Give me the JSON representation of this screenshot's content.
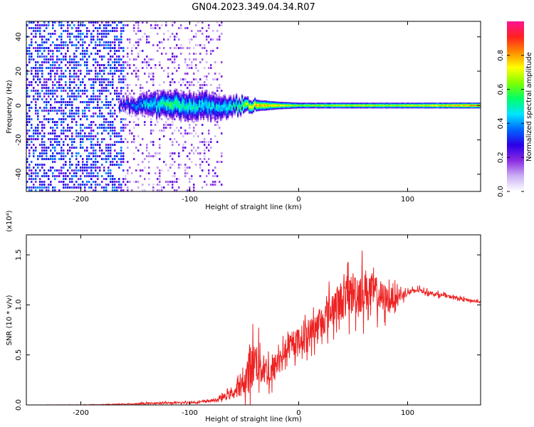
{
  "title": "GN04.2023.349.04.34.R07",
  "chart_data": [
    {
      "type": "heatmap",
      "xlabel": "Height of straight line (km)",
      "ylabel": "Frequency (Hz)",
      "xlim": [
        -250,
        167
      ],
      "ylim": [
        -50,
        49
      ],
      "xticks": [
        -200,
        -100,
        0,
        100
      ],
      "yticks": [
        -40,
        -20,
        0,
        20,
        40
      ],
      "colorbar": {
        "label": "Normalized spectral amplitude",
        "range": [
          0,
          1
        ],
        "ticks": [
          "0.0",
          "0.2",
          "0.4",
          "0.6",
          "0.8"
        ],
        "colors": [
          "#ffffff",
          "#cbb0f5",
          "#8a2be2",
          "#2a00e8",
          "#0066ff",
          "#00e5ff",
          "#00ff66",
          "#7fff00",
          "#ffff00",
          "#ff8c00",
          "#ff2020",
          "#ff1493"
        ]
      },
      "noise_region": {
        "x_from": -250,
        "x_to": -70,
        "freq_from": -50,
        "freq_to": 49,
        "dense_to": -160
      },
      "signal_band": [
        {
          "x": -165,
          "half_width": 3,
          "level": 0.3
        },
        {
          "x": -140,
          "half_width": 6,
          "level": 0.45
        },
        {
          "x": -115,
          "half_width": 7,
          "level": 0.55
        },
        {
          "x": -100,
          "half_width": 7,
          "level": 0.5
        },
        {
          "x": -80,
          "half_width": 7,
          "level": 0.45
        },
        {
          "x": -60,
          "half_width": 5,
          "level": 0.5
        },
        {
          "x": -40,
          "half_width": 3,
          "level": 0.8
        },
        {
          "x": -20,
          "half_width": 2,
          "level": 0.75
        },
        {
          "x": 0,
          "half_width": 1.5,
          "level": 0.65
        },
        {
          "x": 50,
          "half_width": 1.5,
          "level": 0.7
        },
        {
          "x": 100,
          "half_width": 1.5,
          "level": 0.7
        },
        {
          "x": 167,
          "half_width": 1.5,
          "level": 0.85
        }
      ]
    },
    {
      "type": "line",
      "xlabel": "Height of straight line (km)",
      "ylabel": "SNR (10 * v/v)",
      "y_scale_label": "(x10⁴)",
      "xlim": [
        -250,
        167
      ],
      "ylim": [
        0,
        1.7
      ],
      "xticks": [
        -200,
        -100,
        0,
        100
      ],
      "yticks": [
        "0.0",
        "0.5",
        "1.0",
        "1.5"
      ],
      "series": [
        {
          "color": "#ee2222",
          "x": [
            -250,
            -200,
            -150,
            -130,
            -110,
            -90,
            -75,
            -60,
            -50,
            -45,
            -40,
            -35,
            -30,
            -25,
            -20,
            -15,
            -10,
            -5,
            0,
            10,
            20,
            30,
            40,
            50,
            60,
            70,
            80,
            90,
            100,
            110,
            120,
            130,
            140,
            150,
            160,
            167
          ],
          "y": [
            0.0,
            0.0,
            0.01,
            0.02,
            0.02,
            0.03,
            0.05,
            0.12,
            0.22,
            0.35,
            0.45,
            0.4,
            0.35,
            0.3,
            0.42,
            0.5,
            0.55,
            0.6,
            0.65,
            0.72,
            0.82,
            0.95,
            1.05,
            1.12,
            1.15,
            1.12,
            1.05,
            1.08,
            1.12,
            1.15,
            1.12,
            1.1,
            1.08,
            1.06,
            1.04,
            1.03
          ],
          "jitter": [
            0,
            0.005,
            0.01,
            0.02,
            0.02,
            0.02,
            0.03,
            0.1,
            0.2,
            0.55,
            0.4,
            0.45,
            0.3,
            0.35,
            0.25,
            0.2,
            0.2,
            0.22,
            0.25,
            0.28,
            0.3,
            0.35,
            0.4,
            0.45,
            0.45,
            0.35,
            0.3,
            0.15,
            0.06,
            0.05,
            0.04,
            0.04,
            0.03,
            0.03,
            0.03,
            0.02
          ]
        }
      ]
    }
  ]
}
